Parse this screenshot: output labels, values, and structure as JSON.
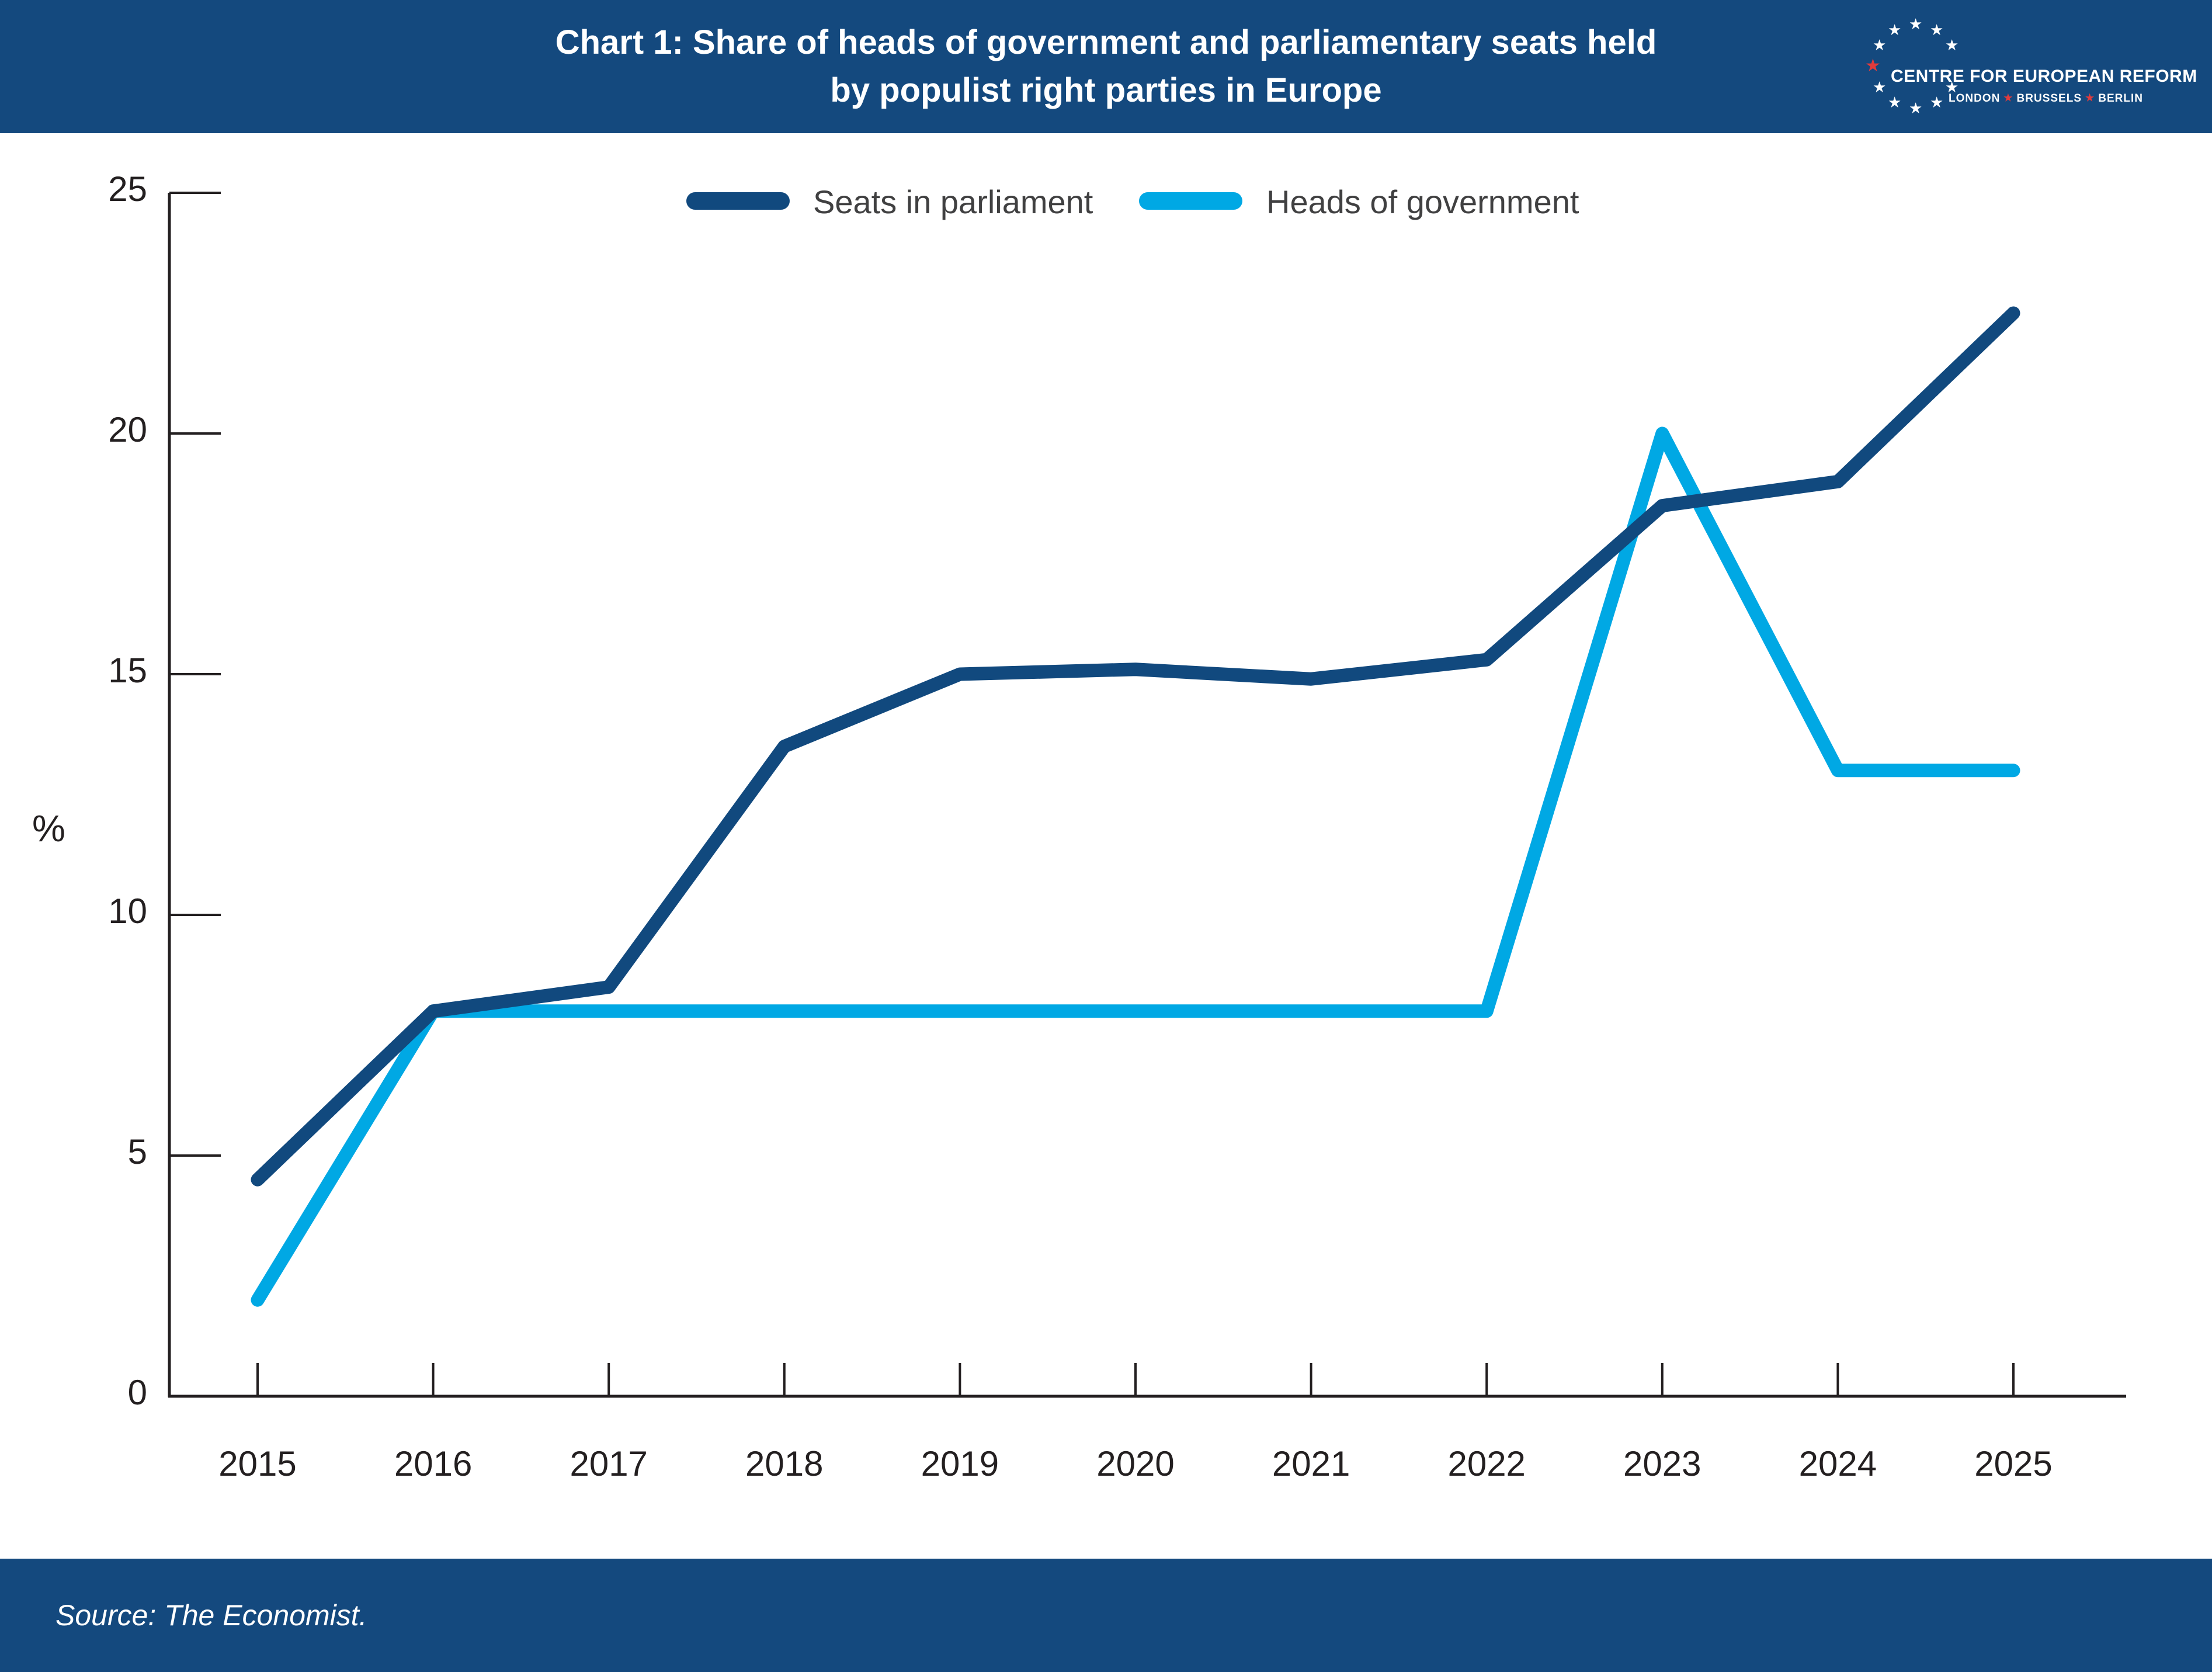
{
  "header": {
    "title_line1": "Chart 1: Share of heads of government and parliamentary seats held",
    "title_line2": "by populist right parties in Europe",
    "logo": {
      "title": "CENTRE FOR EUROPEAN REFORM",
      "cities": [
        "LONDON",
        "BRUSSELS",
        "BERLIN"
      ]
    }
  },
  "footer": {
    "source": "Source: The Economist."
  },
  "colors": {
    "bar_blue": "#14497E",
    "navy_line": "#11497E",
    "light_blue_line": "#00A8E4",
    "star_red": "#E13B3C",
    "axis_line": "#231F20",
    "axis_text": "#231F20",
    "legend_text": "#404041"
  },
  "chart_data": {
    "type": "line",
    "title": "Chart 1: Share of heads of government and parliamentary seats held by populist right parties in Europe",
    "x": [
      2015,
      2016,
      2017,
      2018,
      2019,
      2020,
      2021,
      2022,
      2023,
      2024,
      2025
    ],
    "series": [
      {
        "name": "Seats in parliament",
        "color_key": "navy_line",
        "values": [
          4.5,
          8,
          8.5,
          13.5,
          15,
          15.1,
          14.9,
          15.3,
          18.5,
          19,
          22.5
        ]
      },
      {
        "name": "Heads of government",
        "color_key": "light_blue_line",
        "values": [
          2,
          8,
          8,
          8,
          8,
          8,
          8,
          8,
          20,
          13,
          13
        ]
      }
    ],
    "xlabel": "",
    "ylabel": "%",
    "ylim": [
      0,
      25
    ],
    "yticks": [
      0,
      5,
      10,
      15,
      20,
      25
    ],
    "grid": false,
    "legend_position": "top"
  }
}
